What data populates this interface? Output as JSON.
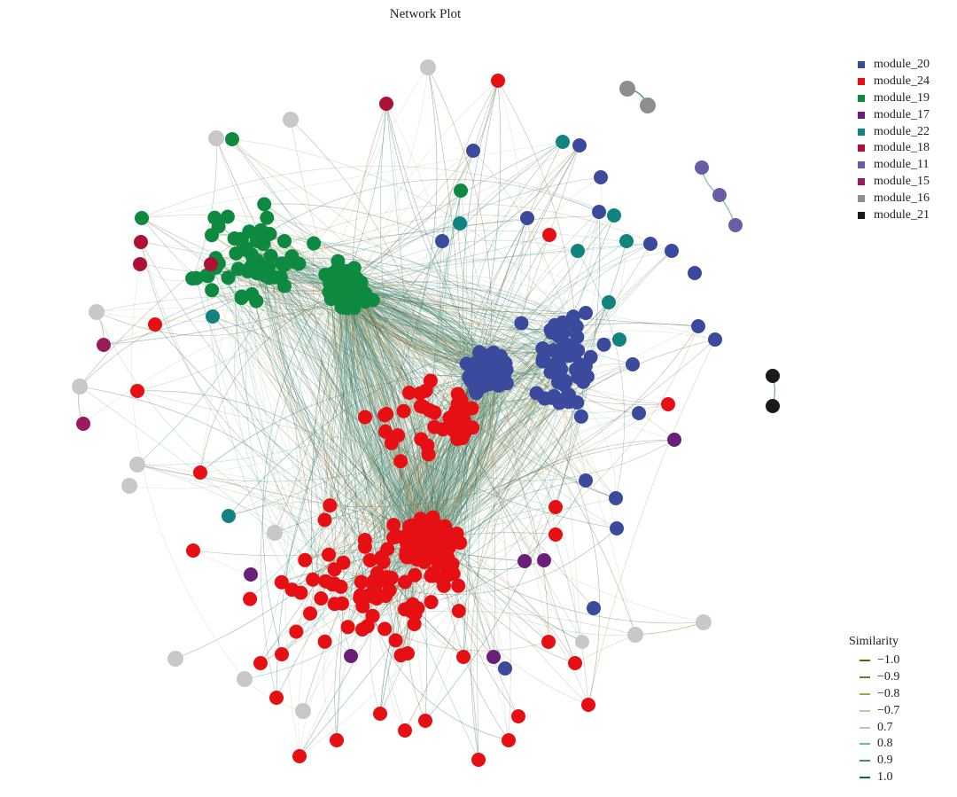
{
  "title": "Network Plot",
  "modules": [
    {
      "name": "module_20",
      "color": "#3b4a9c"
    },
    {
      "name": "module_24",
      "color": "#e60f14"
    },
    {
      "name": "module_19",
      "color": "#0d8a3f"
    },
    {
      "name": "module_17",
      "color": "#6a1f7b"
    },
    {
      "name": "module_22",
      "color": "#12837e"
    },
    {
      "name": "module_18",
      "color": "#ad1236"
    },
    {
      "name": "module_11",
      "color": "#6a5ca6"
    },
    {
      "name": "module_15",
      "color": "#981b5e"
    },
    {
      "name": "module_16",
      "color": "#8e8e8e"
    },
    {
      "name": "module_21",
      "color": "#1a1a1a"
    }
  ],
  "unassigned_color": "#c8c8c8",
  "similarity": {
    "title": "Similarity",
    "entries": [
      {
        "label": "−1.0",
        "color": "#6b5a1c"
      },
      {
        "label": "−0.9",
        "color": "#8a6b2e"
      },
      {
        "label": "−0.8",
        "color": "#b19c5e"
      },
      {
        "label": "−0.7",
        "color": "#cfc193"
      },
      {
        "label": "0.7",
        "color": "#a8cfc6"
      },
      {
        "label": "0.8",
        "color": "#6fb3a6"
      },
      {
        "label": "0.9",
        "color": "#3b8e82"
      },
      {
        "label": "1.0",
        "color": "#14605a"
      }
    ]
  }
}
